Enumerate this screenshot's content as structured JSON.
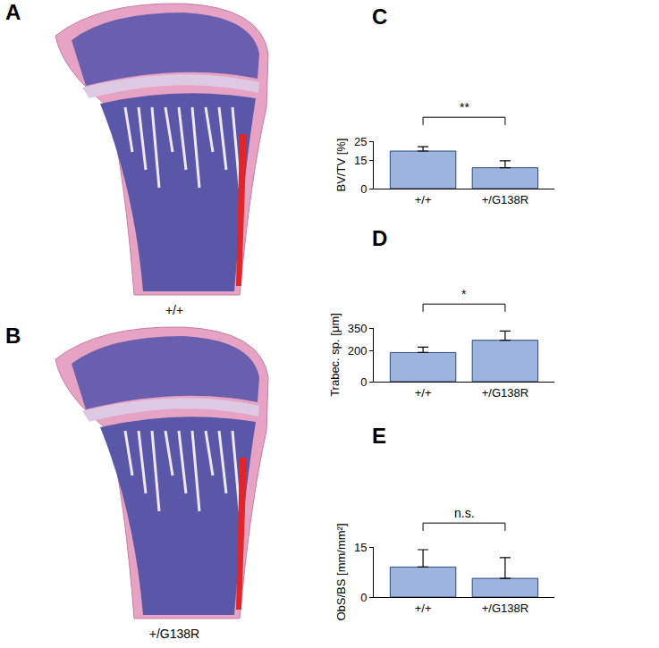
{
  "image_panels": [
    {
      "label": "A",
      "caption": "+/+"
    },
    {
      "label": "B",
      "caption": "+/G138R"
    }
  ],
  "chart_data": [
    {
      "type": "bar",
      "title": "C",
      "ylabel": "BV/TV [%]",
      "categories": [
        "+/+",
        "+/G138R"
      ],
      "values": [
        19.8,
        11.0
      ],
      "errors": [
        2.3,
        3.7
      ],
      "color": "#9db4de",
      "ylim": [
        0,
        25
      ],
      "yticks": [
        0,
        15,
        25
      ],
      "grid": false,
      "annotations": [
        {
          "text": "**",
          "between": [
            "+/+",
            "+/G138R"
          ]
        }
      ]
    },
    {
      "type": "bar",
      "title": "D",
      "ylabel": "Trabec. sp. [μm]",
      "categories": [
        "+/+",
        "+/G138R"
      ],
      "values": [
        190,
        270
      ],
      "errors": [
        35,
        60
      ],
      "color": "#9db4de",
      "ylim": [
        0,
        350
      ],
      "yticks": [
        0,
        200,
        350
      ],
      "grid": false,
      "annotations": [
        {
          "text": "*",
          "between": [
            "+/+",
            "+/G138R"
          ]
        }
      ]
    },
    {
      "type": "bar",
      "title": "E",
      "ylabel": "ObS/BS [mm/mm²]",
      "categories": [
        "+/+",
        "+/G138R"
      ],
      "values": [
        9.0,
        5.6
      ],
      "errors": [
        5.2,
        6.2
      ],
      "color": "#9db4de",
      "ylim": [
        0,
        15
      ],
      "yticks": [
        0,
        15
      ],
      "grid": false,
      "annotations": [
        {
          "text": "n.s.",
          "between": [
            "+/+",
            "+/G138R"
          ]
        }
      ]
    }
  ]
}
